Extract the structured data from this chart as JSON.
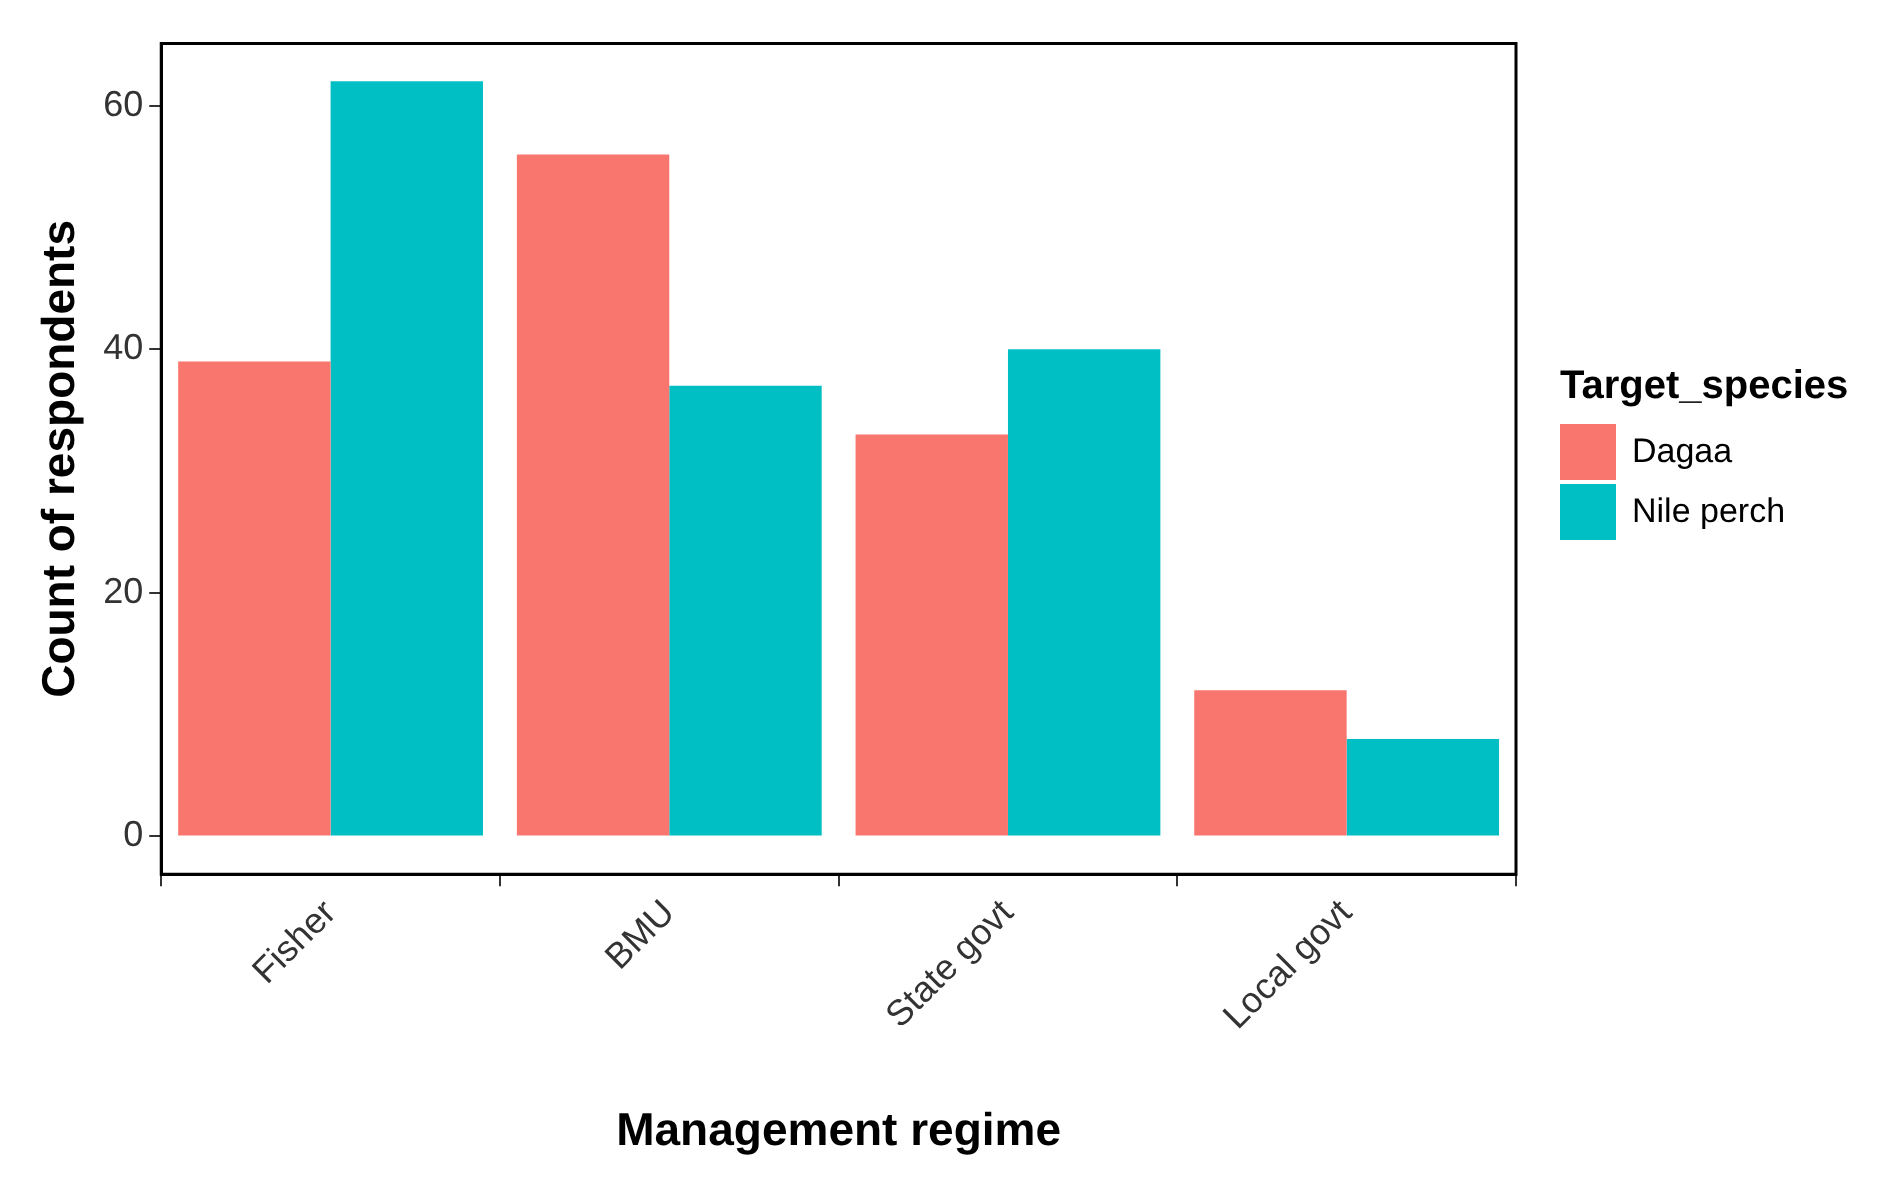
{
  "chart_data": {
    "type": "bar",
    "xlabel": "Management regime",
    "ylabel": "Count of respondents",
    "legend_title": "Target_species",
    "categories": [
      "Fisher",
      "BMU",
      "State govt",
      "Local govt"
    ],
    "series": [
      {
        "name": "Dagaa",
        "color": "#f8766d",
        "values": [
          39,
          56,
          33,
          12
        ]
      },
      {
        "name": "Nile perch",
        "color": "#00bfc4",
        "values": [
          62,
          37,
          40,
          8
        ]
      }
    ],
    "ylim": [
      -3.1,
      65.1
    ],
    "yticks": [
      0,
      20,
      40,
      60
    ],
    "grid": false,
    "legend": "right"
  }
}
